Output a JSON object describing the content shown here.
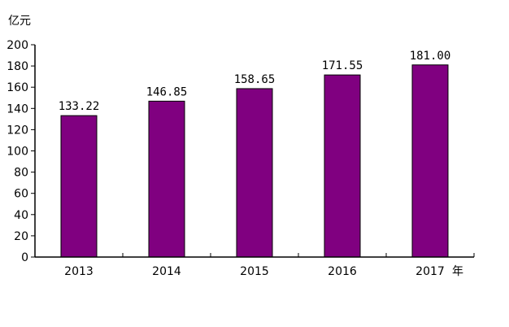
{
  "chart_data": {
    "type": "bar",
    "categories": [
      "2013",
      "2014",
      "2015",
      "2016",
      "2017"
    ],
    "values": [
      133.22,
      146.85,
      158.65,
      171.55,
      181.0
    ],
    "data_labels": [
      "133.22",
      "146.85",
      "158.65",
      "171.55",
      "181.00"
    ],
    "yticks": [
      0,
      20,
      40,
      60,
      80,
      100,
      120,
      140,
      160,
      180,
      200
    ],
    "ylim": [
      0,
      200
    ],
    "ylabel": "亿元",
    "xlabel": "年",
    "title": "",
    "grid": false,
    "bar_color": "#800080"
  }
}
